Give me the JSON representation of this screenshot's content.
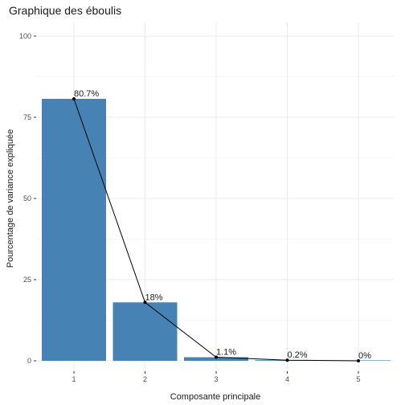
{
  "chart_data": {
    "type": "bar",
    "title": "Graphique des éboulis",
    "xlabel": "Composante principale",
    "ylabel": "Pourcentage de variance expliquée",
    "categories": [
      "1",
      "2",
      "3",
      "4",
      "5"
    ],
    "values": [
      80.7,
      18.0,
      1.1,
      0.2,
      0.0
    ],
    "data_labels": [
      "80.7%",
      "18%",
      "1.1%",
      "0.2%",
      "0%"
    ],
    "line_overlay": true,
    "ylim": [
      0,
      100
    ],
    "yticks": [
      "0",
      "25",
      "50",
      "75",
      "100"
    ],
    "grid": true,
    "legend": "none",
    "colors": {
      "bar": "#4682B4",
      "line": "#000000",
      "grid": "#ebebeb"
    }
  }
}
